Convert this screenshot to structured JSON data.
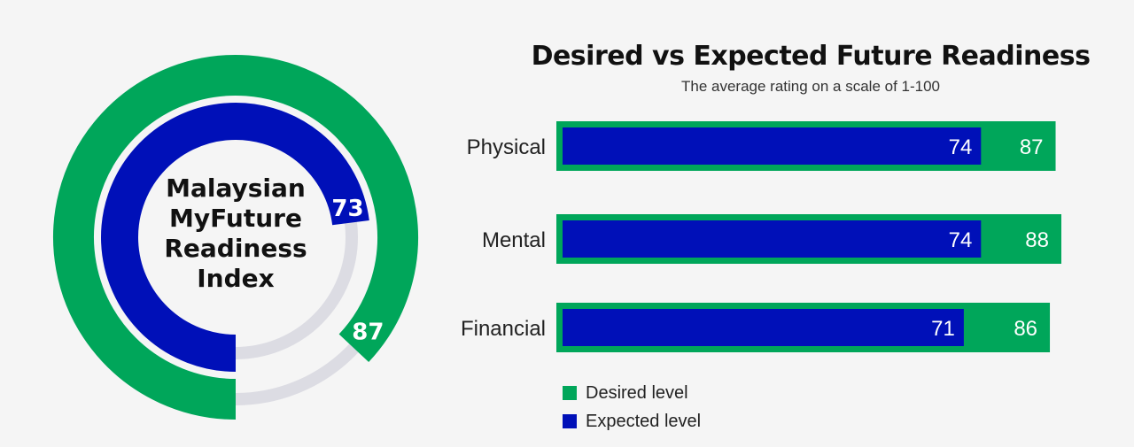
{
  "index": {
    "title_lines": [
      "Malaysian",
      "MyFuture",
      "Readiness",
      "Index"
    ]
  },
  "chart_title": "Desired vs Expected Future Readiness",
  "chart_subtitle": "The average rating on a scale of 1-100",
  "colors": {
    "desired": "#00a65a",
    "expected": "#0010b8",
    "track": "#dcdce3",
    "background": "#f5f5f5"
  },
  "legend": {
    "desired_label": "Desired level",
    "expected_label": "Expected level"
  },
  "chart_data": [
    {
      "type": "radial-bar",
      "max": 100,
      "series": [
        {
          "name": "Desired level",
          "value": 87
        },
        {
          "name": "Expected level",
          "value": 73
        }
      ]
    },
    {
      "type": "bar",
      "orientation": "horizontal",
      "title": "Desired vs Expected Future Readiness",
      "subtitle": "The average rating on a scale of 1-100",
      "categories": [
        "Physical",
        "Mental",
        "Financial"
      ],
      "series": [
        {
          "name": "Desired level",
          "values": [
            87,
            88,
            86
          ]
        },
        {
          "name": "Expected level",
          "values": [
            74,
            74,
            71
          ]
        }
      ],
      "xlim": [
        0,
        100
      ],
      "legend": "bottom-left"
    }
  ]
}
